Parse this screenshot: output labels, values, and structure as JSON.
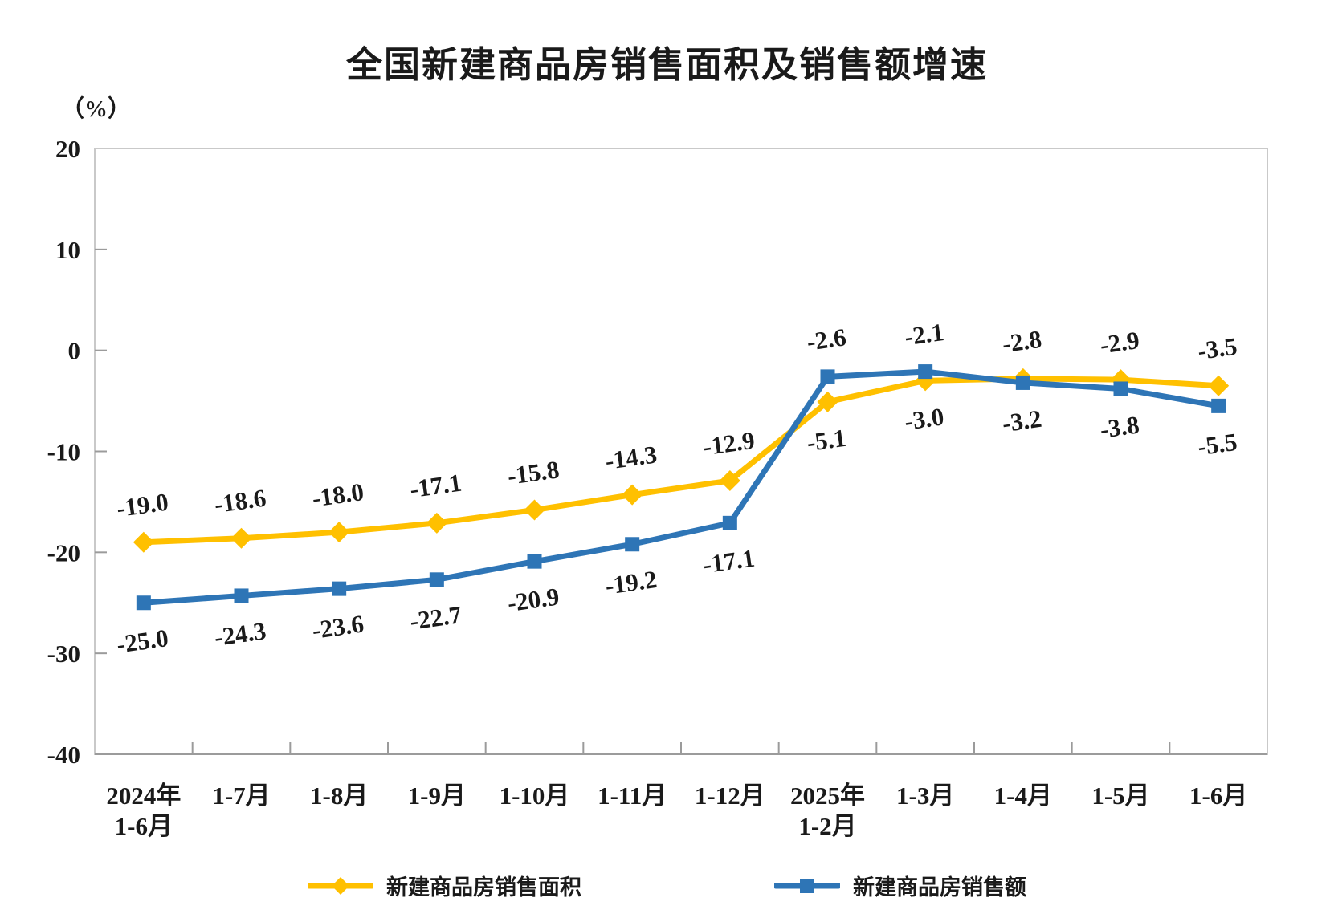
{
  "title": "全国新建商品房销售面积及销售额增速",
  "y_axis_unit": "（%）",
  "chart_data": {
    "type": "line",
    "categories": [
      "2024年|1-6月",
      "1-7月",
      "1-8月",
      "1-9月",
      "1-10月",
      "1-11月",
      "1-12月",
      "2025年|1-2月",
      "1-3月",
      "1-4月",
      "1-5月",
      "1-6月"
    ],
    "ylim": [
      -40,
      20
    ],
    "yticks": [
      20,
      10,
      0,
      -10,
      -20,
      -30,
      -40
    ],
    "grid": false,
    "legend_position": "bottom",
    "border_color": "#c9c9c9",
    "axis_color": "#9b9b9b",
    "text_color": "#1a1a1a",
    "series": [
      {
        "name": "新建商品房销售面积",
        "color": "#FFC000",
        "marker": "diamond",
        "values": [
          -19.0,
          -18.6,
          -18.0,
          -17.1,
          -15.8,
          -14.3,
          -12.9,
          -5.1,
          -3.0,
          -2.8,
          -2.9,
          -3.5
        ],
        "label_side": [
          "above",
          "above",
          "above",
          "above",
          "above",
          "above",
          "above",
          "below",
          "below",
          "above",
          "above",
          "above"
        ]
      },
      {
        "name": "新建商品房销售额",
        "color": "#2E75B6",
        "marker": "square",
        "values": [
          -25.0,
          -24.3,
          -23.6,
          -22.7,
          -20.9,
          -19.2,
          -17.1,
          -2.6,
          -2.1,
          -3.2,
          -3.8,
          -5.5
        ],
        "label_side": [
          "below",
          "below",
          "below",
          "below",
          "below",
          "below",
          "below",
          "above",
          "above",
          "below",
          "below",
          "below"
        ]
      }
    ]
  }
}
